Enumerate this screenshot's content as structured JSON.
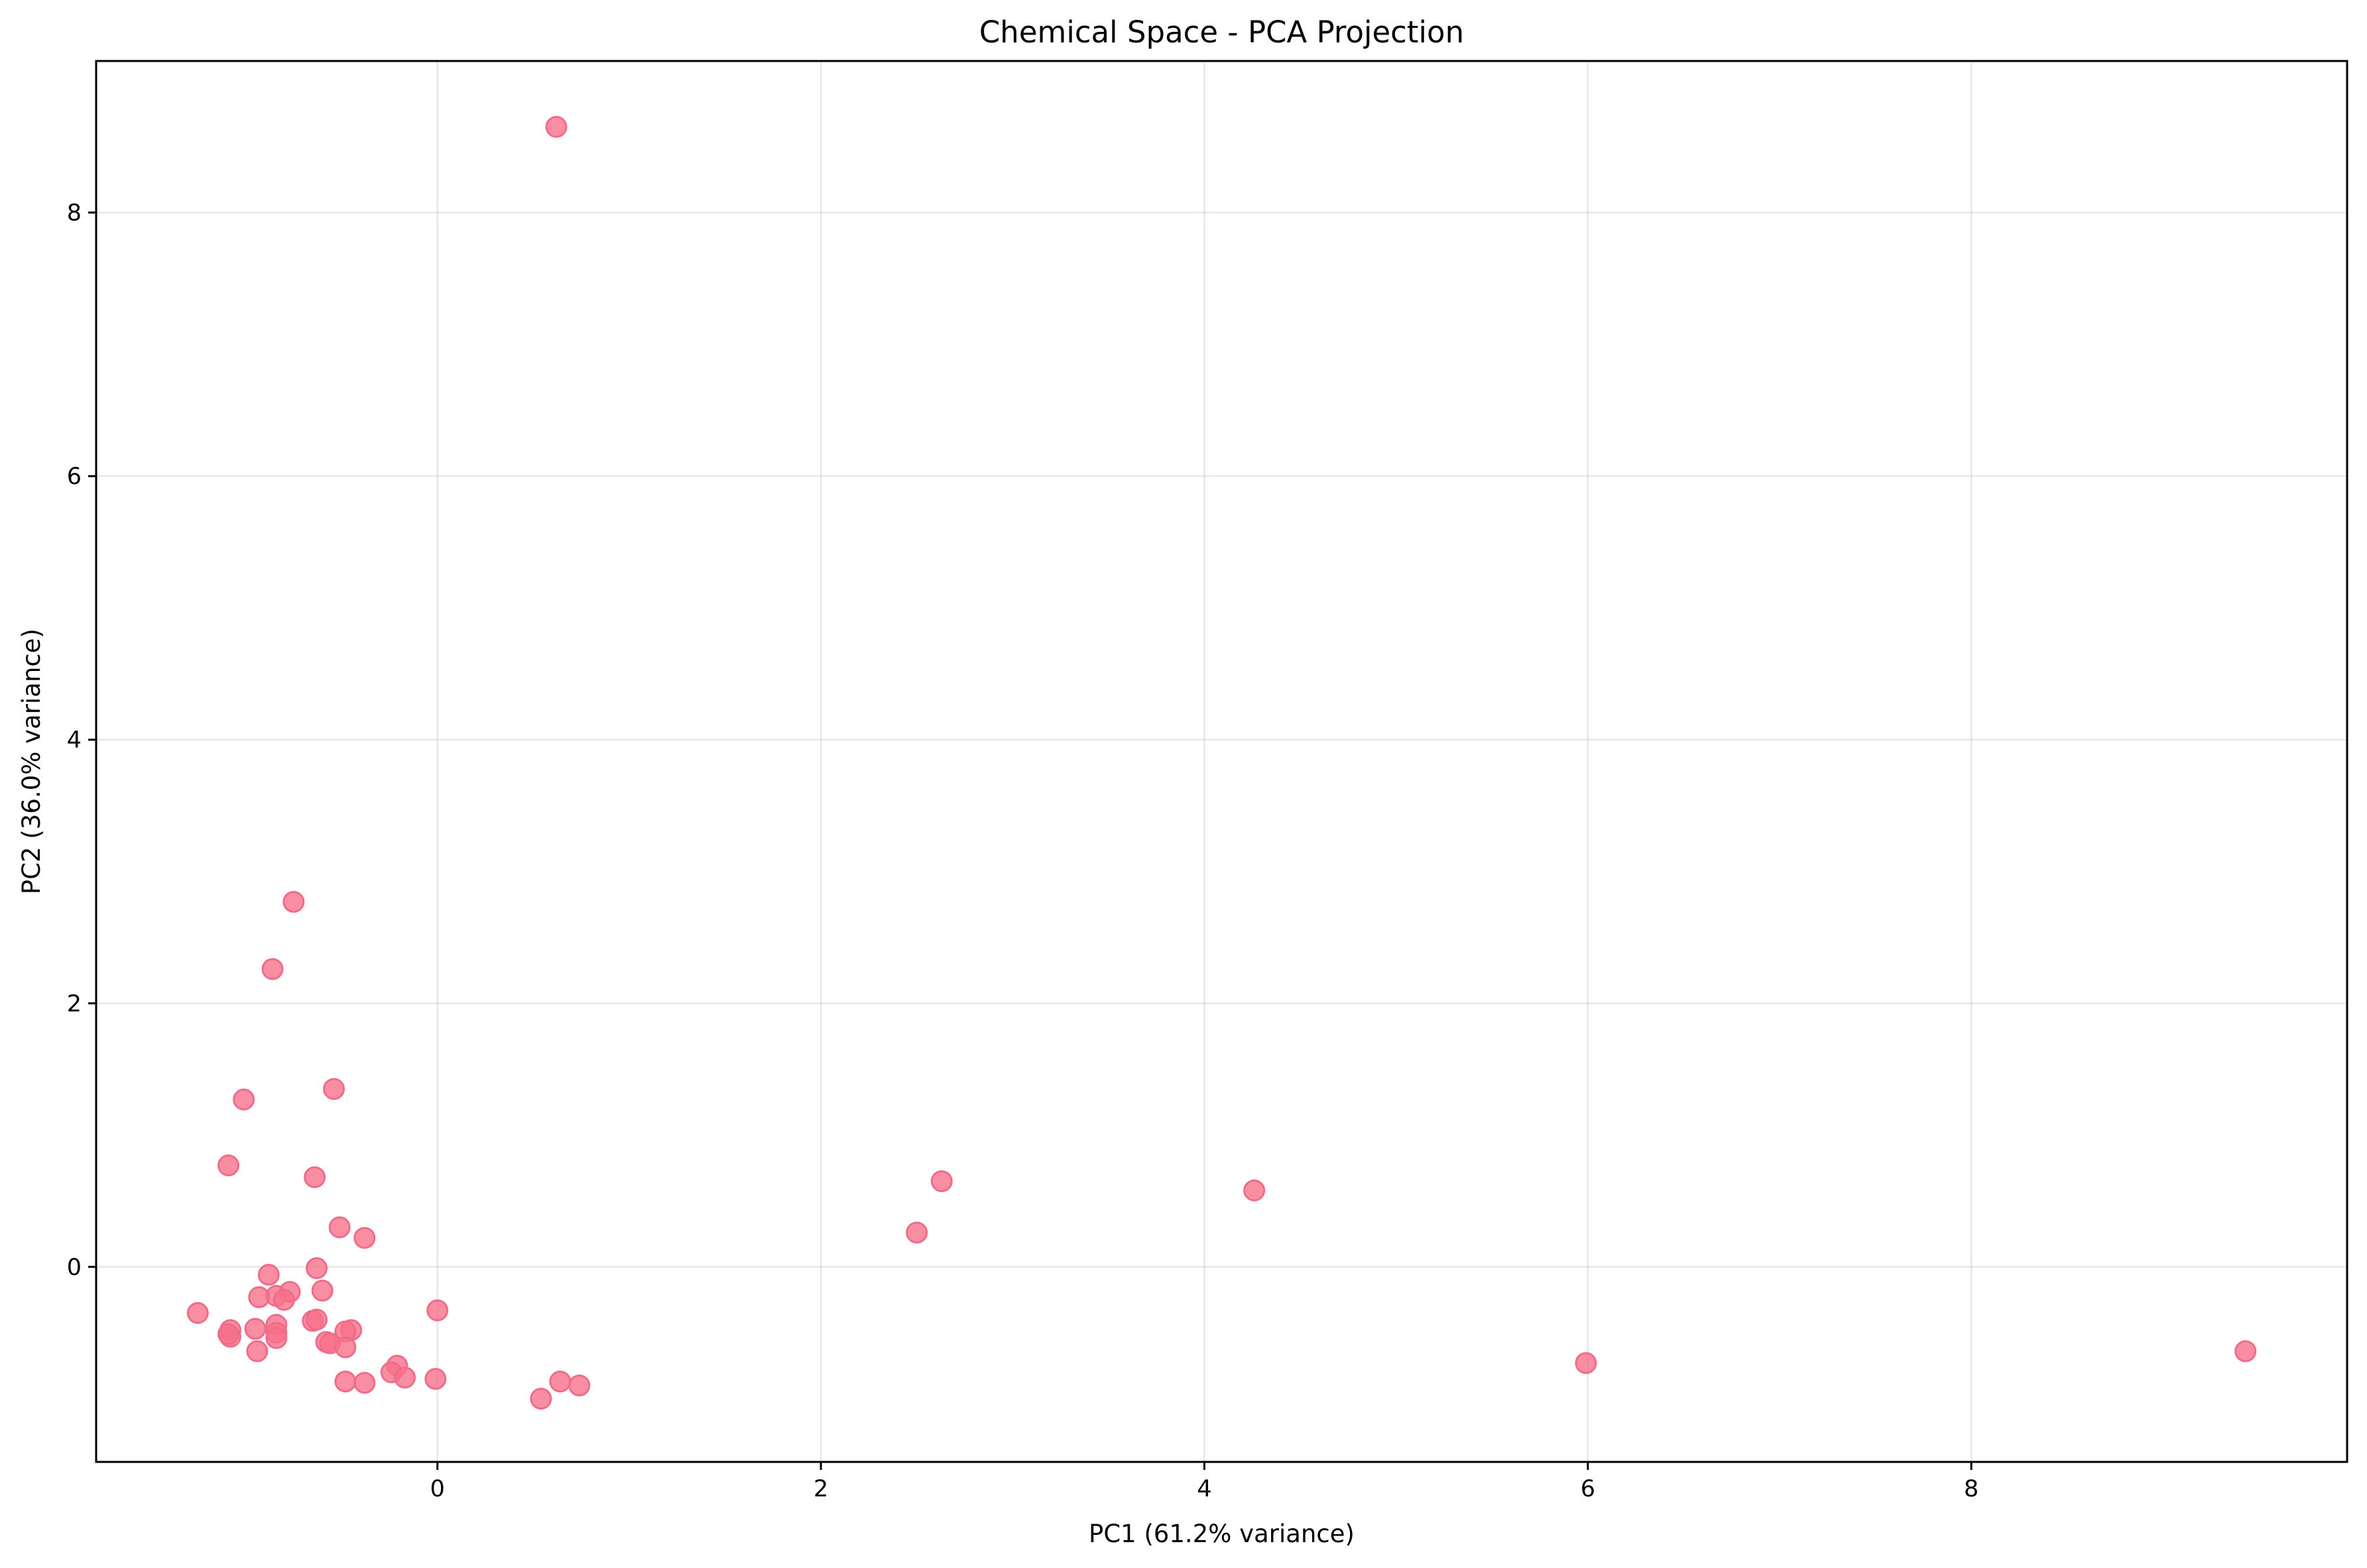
{
  "chart_data": {
    "type": "scatter",
    "title": "Chemical Space - PCA Projection",
    "xlabel": "PC1 (61.2% variance)",
    "ylabel": "PC2 (36.0% variance)",
    "xlim": [
      -1.78,
      9.96
    ],
    "ylim": [
      -1.48,
      9.15
    ],
    "xticks": [
      0,
      2,
      4,
      6,
      8
    ],
    "yticks": [
      0,
      2,
      4,
      6,
      8
    ],
    "grid": true,
    "legend": "none",
    "point_color": "#f77189",
    "series": [
      {
        "points": [
          [
            0.62,
            8.65
          ],
          [
            -0.75,
            2.77
          ],
          [
            -0.86,
            2.26
          ],
          [
            -1.01,
            1.27
          ],
          [
            -0.54,
            1.35
          ],
          [
            -1.09,
            0.77
          ],
          [
            -0.64,
            0.68
          ],
          [
            -0.51,
            0.3
          ],
          [
            -0.38,
            0.22
          ],
          [
            -0.88,
            -0.06
          ],
          [
            -0.63,
            -0.01
          ],
          [
            -0.6,
            -0.18
          ],
          [
            -0.77,
            -0.19
          ],
          [
            -0.84,
            -0.22
          ],
          [
            -0.8,
            -0.25
          ],
          [
            -0.93,
            -0.23
          ],
          [
            -1.25,
            -0.35
          ],
          [
            0.0,
            -0.33
          ],
          [
            -0.65,
            -0.41
          ],
          [
            -0.63,
            -0.4
          ],
          [
            -0.84,
            -0.44
          ],
          [
            -0.45,
            -0.48
          ],
          [
            -0.48,
            -0.49
          ],
          [
            -0.95,
            -0.47
          ],
          [
            -1.08,
            -0.48
          ],
          [
            -1.08,
            -0.53
          ],
          [
            -1.09,
            -0.51
          ],
          [
            -0.84,
            -0.5
          ],
          [
            -0.84,
            -0.54
          ],
          [
            -0.58,
            -0.57
          ],
          [
            -0.56,
            -0.58
          ],
          [
            -0.48,
            -0.61
          ],
          [
            -0.94,
            -0.64
          ],
          [
            -0.21,
            -0.75
          ],
          [
            -0.24,
            -0.8
          ],
          [
            -0.17,
            -0.84
          ],
          [
            -0.48,
            -0.87
          ],
          [
            -0.38,
            -0.88
          ],
          [
            -0.01,
            -0.85
          ],
          [
            0.64,
            -0.87
          ],
          [
            0.74,
            -0.9
          ],
          [
            0.54,
            -1.0
          ],
          [
            2.5,
            0.26
          ],
          [
            2.63,
            0.65
          ],
          [
            4.26,
            0.58
          ],
          [
            5.99,
            -0.73
          ],
          [
            9.43,
            -0.64
          ]
        ]
      }
    ]
  }
}
